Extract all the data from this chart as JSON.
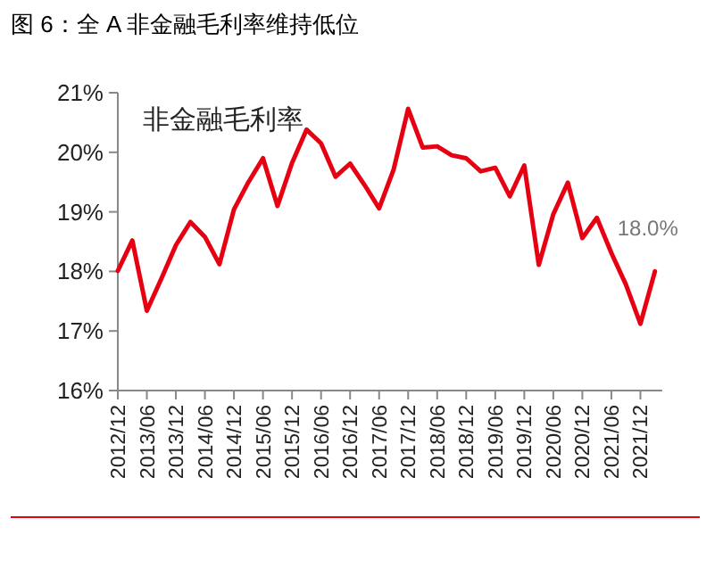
{
  "chart_data": {
    "type": "line",
    "title": "图 6：全 A 非金融毛利率维持低位",
    "categories": [
      "2012/12",
      null,
      "2013/06",
      null,
      "2013/12",
      null,
      "2014/06",
      null,
      "2014/12",
      null,
      "2015/06",
      null,
      "2015/12",
      null,
      "2016/06",
      null,
      "2016/12",
      null,
      "2017/06",
      null,
      "2017/12",
      null,
      "2018/06",
      null,
      "2018/12",
      null,
      "2019/06",
      null,
      "2019/12",
      null,
      "2020/06",
      null,
      "2020/12",
      null,
      "2021/06",
      null,
      "2021/12",
      null
    ],
    "series": [
      {
        "name": "非金融毛利率",
        "color": "#e60012",
        "values": [
          18.01,
          18.52,
          17.34,
          17.88,
          18.44,
          18.83,
          18.58,
          18.12,
          19.04,
          19.5,
          19.9,
          19.1,
          19.82,
          20.38,
          20.15,
          19.59,
          19.81,
          19.45,
          19.06,
          19.71,
          20.73,
          20.08,
          20.1,
          19.95,
          19.9,
          19.68,
          19.74,
          19.26,
          19.78,
          18.11,
          18.96,
          19.49,
          18.56,
          18.9,
          18.31,
          17.78,
          17.12,
          18.0
        ],
        "value_labels": [
          null,
          null,
          null,
          null,
          null,
          null,
          null,
          null,
          null,
          null,
          null,
          null,
          null,
          null,
          null,
          null,
          null,
          null,
          null,
          null,
          null,
          null,
          null,
          null,
          null,
          null,
          null,
          null,
          null,
          null,
          null,
          null,
          null,
          null,
          null,
          null,
          null,
          "18.0%"
        ]
      }
    ],
    "ylim": [
      16,
      21
    ],
    "yticks": [
      {
        "value": 16,
        "label": "16%"
      },
      {
        "value": 17,
        "label": "17%"
      },
      {
        "value": 18,
        "label": "18%"
      },
      {
        "value": 19,
        "label": "19%"
      },
      {
        "value": 20,
        "label": "20%"
      },
      {
        "value": 21,
        "label": "21%"
      }
    ],
    "legend": "top left",
    "grid": false,
    "marker": "none",
    "line_style": "solid"
  }
}
